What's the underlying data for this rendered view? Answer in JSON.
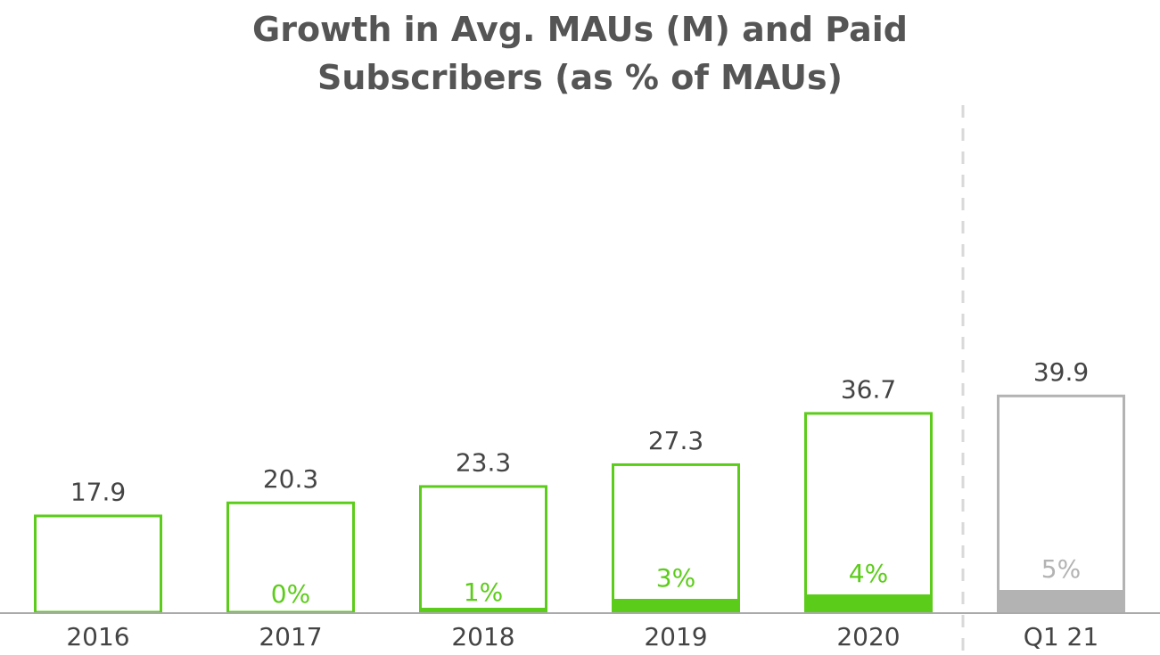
{
  "chart_data": {
    "type": "bar",
    "title_line1": "Growth in Avg. MAUs (M) and Paid",
    "title_line2": "Subscribers (as % of MAUs)",
    "categories": [
      "2016",
      "2017",
      "2018",
      "2019",
      "2020",
      "Q1 21"
    ],
    "series": [
      {
        "name": "Avg. MAUs (M)",
        "values": [
          17.9,
          20.3,
          23.3,
          27.3,
          36.7,
          39.9
        ]
      },
      {
        "name": "Paid Subscribers (% of MAUs)",
        "values": [
          null,
          0,
          1,
          3,
          4,
          5
        ]
      }
    ],
    "value_labels": [
      "17.9",
      "20.3",
      "23.3",
      "27.3",
      "36.7",
      "39.9"
    ],
    "pct_labels": [
      "",
      "0%",
      "1%",
      "3%",
      "4%",
      "5%"
    ],
    "highlight": [
      false,
      false,
      false,
      false,
      false,
      true
    ],
    "ylim": [
      0,
      45
    ],
    "xlabel": "",
    "ylabel": "",
    "colors": {
      "accent": "#5ccc1a",
      "muted": "#b3b3b3",
      "text": "#444444",
      "axis": "#aaaaaa",
      "divider": "#d9d9d9"
    }
  }
}
